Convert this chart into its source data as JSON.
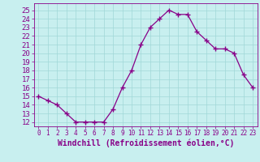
{
  "x": [
    0,
    1,
    2,
    3,
    4,
    5,
    6,
    7,
    8,
    9,
    10,
    11,
    12,
    13,
    14,
    15,
    16,
    17,
    18,
    19,
    20,
    21,
    22,
    23
  ],
  "y": [
    15,
    14.5,
    14,
    13,
    12,
    12,
    12,
    12,
    13.5,
    16,
    18,
    21,
    23,
    24,
    25,
    24.5,
    24.5,
    22.5,
    21.5,
    20.5,
    20.5,
    20,
    17.5,
    16
  ],
  "line_color": "#880088",
  "marker": "+",
  "marker_size": 4,
  "bg_color": "#c8efef",
  "grid_color": "#a0d8d8",
  "xlabel": "Windchill (Refroidissement éolien,°C)",
  "xlabel_fontsize": 7,
  "tick_fontsize": 6.5,
  "ylim": [
    11.5,
    25.8
  ],
  "yticks": [
    12,
    13,
    14,
    15,
    16,
    17,
    18,
    19,
    20,
    21,
    22,
    23,
    24,
    25
  ],
  "xlim": [
    -0.5,
    23.5
  ],
  "xticks": [
    0,
    1,
    2,
    3,
    4,
    5,
    6,
    7,
    8,
    9,
    10,
    11,
    12,
    13,
    14,
    15,
    16,
    17,
    18,
    19,
    20,
    21,
    22,
    23
  ]
}
